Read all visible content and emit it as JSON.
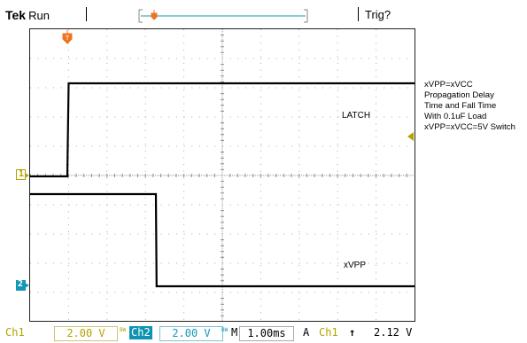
{
  "header": {
    "brand": "Tek",
    "status": "Run",
    "trig_status": "Trig?"
  },
  "markers": {
    "trigger_top": "T",
    "ch1_ground": "1",
    "ch2_ground": "2"
  },
  "annotations": {
    "side_note_lines": [
      "xVPP=xVCC",
      "Propagation Delay",
      "Time and Fall Time",
      "With 0.1uF Load",
      "xVPP=xVCC=5V Switch"
    ],
    "latch_label": "LATCH",
    "xvpp_label": "xVPP"
  },
  "readouts": {
    "ch1_label": "Ch1",
    "ch1_scale": "2.00 V",
    "ch2_label": "Ch2",
    "ch2_scale": "2.00 V",
    "bw_mark": "BW",
    "time_mode": "M",
    "time_scale": "1.00ms",
    "acq": "A",
    "trig_source": "Ch1",
    "trig_slope": "↑",
    "trig_level": "2.12 V"
  },
  "colors": {
    "ch1": "#b3a400",
    "ch2": "#1398b6",
    "trigger": "#f0741f",
    "grid": "#9a9a9a",
    "trace": "#000000"
  }
}
